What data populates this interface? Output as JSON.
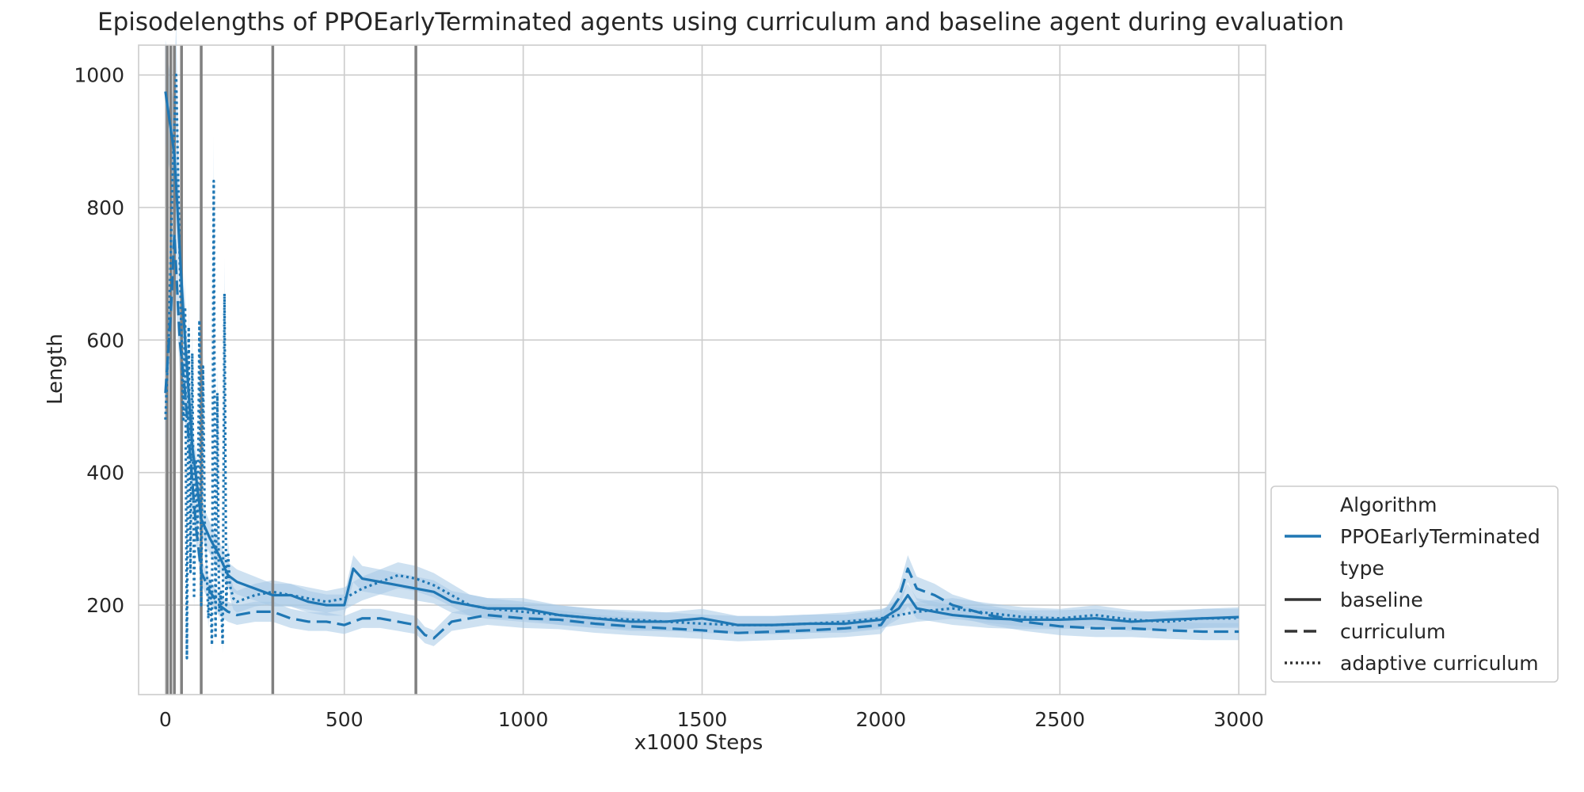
{
  "chart_data": {
    "type": "line",
    "title": "Episodelengths of PPOEarlyTerminated agents using curriculum and baseline agent during evaluation",
    "xlabel": "x1000 Steps",
    "ylabel": "Length",
    "xlim": [
      -75,
      3075
    ],
    "ylim": [
      65,
      1045
    ],
    "x_ticks": [
      0,
      500,
      1000,
      1500,
      2000,
      2500,
      3000
    ],
    "y_ticks": [
      200,
      400,
      600,
      800,
      1000
    ],
    "grid": true,
    "vertical_markers": [
      5,
      15,
      25,
      45,
      100,
      300,
      700
    ],
    "legend": {
      "placement": "lower-right, outside plot",
      "entries": [
        {
          "label": "Algorithm",
          "style": "header"
        },
        {
          "label": "PPOEarlyTerminated",
          "style": "color"
        },
        {
          "label": "type",
          "style": "header"
        },
        {
          "label": "baseline",
          "style": "solid"
        },
        {
          "label": "curriculum",
          "style": "dashed"
        },
        {
          "label": "adaptive curriculum",
          "style": "dotted"
        }
      ]
    },
    "color": "#1f77b4",
    "band_color": "#a6c8e6",
    "marker_color": "#808080",
    "series": [
      {
        "name": "baseline",
        "style": "solid",
        "x": [
          0,
          25,
          50,
          75,
          100,
          125,
          150,
          175,
          200,
          250,
          300,
          350,
          400,
          450,
          500,
          525,
          550,
          600,
          650,
          700,
          750,
          800,
          850,
          900,
          1000,
          1100,
          1200,
          1300,
          1400,
          1500,
          1600,
          1700,
          1800,
          1900,
          2000,
          2050,
          2075,
          2100,
          2150,
          2200,
          2300,
          2400,
          2500,
          2600,
          2700,
          2800,
          2900,
          3000
        ],
        "y": [
          975,
          880,
          640,
          440,
          330,
          300,
          275,
          245,
          235,
          225,
          215,
          215,
          205,
          200,
          200,
          255,
          240,
          235,
          230,
          225,
          220,
          205,
          200,
          195,
          195,
          185,
          180,
          175,
          175,
          180,
          170,
          170,
          172,
          172,
          178,
          195,
          215,
          195,
          190,
          185,
          180,
          178,
          178,
          180,
          175,
          178,
          180,
          182
        ]
      },
      {
        "name": "curriculum",
        "style": "dashed",
        "x": [
          0,
          15,
          25,
          40,
          55,
          70,
          85,
          100,
          125,
          150,
          175,
          200,
          250,
          300,
          350,
          400,
          450,
          500,
          550,
          600,
          650,
          700,
          725,
          750,
          800,
          850,
          900,
          1000,
          1100,
          1200,
          1300,
          1400,
          1500,
          1600,
          1700,
          1800,
          1900,
          2000,
          2050,
          2075,
          2100,
          2150,
          2200,
          2300,
          2400,
          2500,
          2600,
          2700,
          2800,
          2900,
          3000
        ],
        "y": [
          520,
          640,
          760,
          600,
          520,
          420,
          320,
          250,
          220,
          200,
          190,
          185,
          190,
          190,
          180,
          175,
          175,
          170,
          180,
          180,
          175,
          170,
          155,
          150,
          175,
          180,
          185,
          180,
          178,
          172,
          168,
          165,
          162,
          158,
          160,
          162,
          165,
          170,
          210,
          255,
          225,
          215,
          200,
          185,
          175,
          168,
          165,
          165,
          162,
          160,
          160
        ]
      },
      {
        "name": "adaptive curriculum",
        "style": "dotted",
        "x": [
          0,
          10,
          20,
          30,
          35,
          40,
          50,
          55,
          60,
          65,
          70,
          75,
          80,
          85,
          90,
          95,
          100,
          105,
          110,
          115,
          120,
          125,
          130,
          135,
          140,
          145,
          150,
          155,
          160,
          165,
          170,
          175,
          180,
          190,
          200,
          250,
          300,
          350,
          400,
          450,
          500,
          550,
          600,
          650,
          700,
          750,
          800,
          850,
          900,
          1000,
          1100,
          1200,
          1300,
          1400,
          1500,
          1600,
          1700,
          1800,
          1900,
          2000,
          2100,
          2200,
          2300,
          2400,
          2500,
          2600,
          2700,
          2800,
          2900,
          3000
        ],
        "y": [
          480,
          620,
          850,
          1000,
          860,
          720,
          480,
          650,
          120,
          620,
          250,
          580,
          210,
          420,
          300,
          630,
          200,
          560,
          320,
          260,
          180,
          240,
          140,
          840,
          150,
          520,
          190,
          220,
          140,
          670,
          200,
          280,
          230,
          210,
          205,
          215,
          220,
          215,
          210,
          205,
          210,
          225,
          235,
          245,
          240,
          230,
          215,
          200,
          195,
          190,
          185,
          180,
          178,
          175,
          172,
          170,
          170,
          172,
          175,
          180,
          190,
          195,
          188,
          182,
          180,
          185,
          178,
          175,
          180,
          180
        ]
      }
    ]
  }
}
